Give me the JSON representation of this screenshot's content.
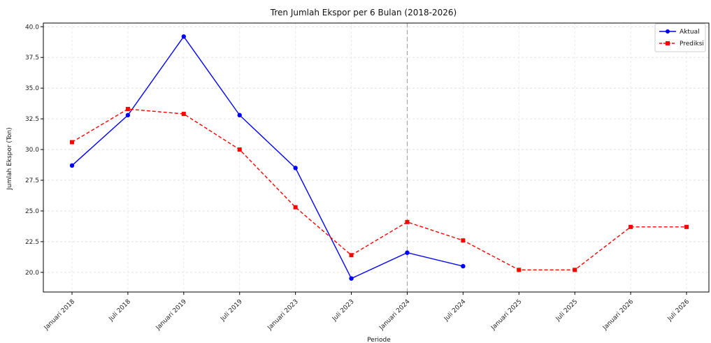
{
  "chart_data": {
    "type": "line",
    "title": "Tren Jumlah Ekspor per 6 Bulan (2018-2026)",
    "xlabel": "Periode",
    "ylabel": "Jumlah Ekspor (Ton)",
    "categories": [
      "Januari 2018",
      "Juli 2018",
      "Januari 2019",
      "Juli 2019",
      "Januari 2023",
      "Juli 2023",
      "Januari 2024",
      "Juli 2024",
      "Januari 2025",
      "Juli 2025",
      "Januari 2026",
      "Juli 2026"
    ],
    "ylim": [
      18.4,
      40.3
    ],
    "yticks": [
      20.0,
      22.5,
      25.0,
      27.5,
      30.0,
      32.5,
      35.0,
      37.5,
      40.0
    ],
    "ytick_labels": [
      "20.0",
      "22.5",
      "25.0",
      "27.5",
      "30.0",
      "32.5",
      "35.0",
      "37.5",
      "40.0"
    ],
    "grid": true,
    "legend_position": "top-right",
    "divider_category": "Januari 2024",
    "series": [
      {
        "name": "Aktual",
        "color": "#0000ff",
        "style": "solid",
        "marker": "circle",
        "values": [
          28.7,
          32.8,
          39.2,
          32.8,
          28.5,
          19.5,
          21.6,
          20.5,
          null,
          null,
          null,
          null
        ]
      },
      {
        "name": "Prediksi",
        "color": "#ff0000",
        "style": "dashed",
        "marker": "square",
        "values": [
          30.6,
          33.3,
          32.9,
          30.0,
          25.3,
          21.4,
          24.1,
          22.6,
          20.2,
          20.2,
          23.7,
          23.7
        ]
      }
    ]
  }
}
